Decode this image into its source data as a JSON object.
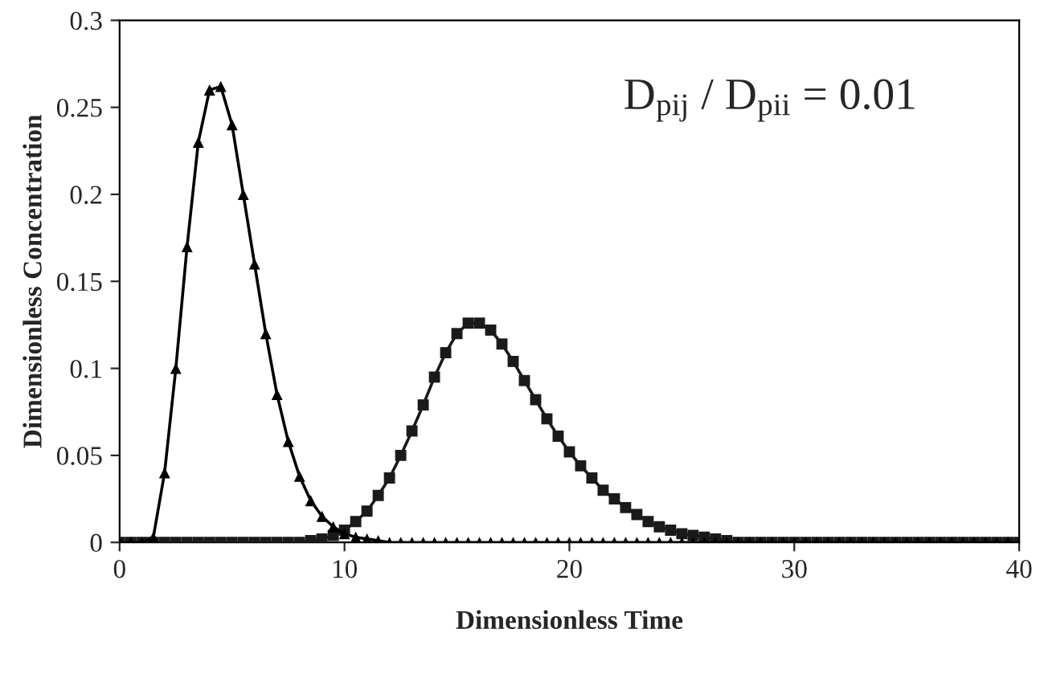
{
  "chart_data": {
    "type": "line",
    "xlabel": "Dimensionless Time",
    "ylabel": "Dimensionless Concentration",
    "annotations": [
      "D$_{pij}$ / D$_{pii}$ = 0.01"
    ],
    "x": [
      0,
      0.5,
      1,
      1.5,
      2,
      2.5,
      3,
      3.5,
      4,
      4.5,
      5,
      5.5,
      6,
      6.5,
      7,
      7.5,
      8,
      8.5,
      9,
      9.5,
      10,
      10.5,
      11,
      11.5,
      12,
      12.5,
      13,
      13.5,
      14,
      14.5,
      15,
      15.5,
      16,
      16.5,
      17,
      17.5,
      18,
      18.5,
      19,
      19.5,
      20,
      20.5,
      21,
      21.5,
      22,
      22.5,
      23,
      23.5,
      24,
      24.5,
      25,
      25.5,
      26,
      26.5,
      27,
      27.5,
      28,
      28.5,
      29,
      29.5,
      30,
      30.5,
      31,
      31.5,
      32,
      32.5,
      33,
      33.5,
      34,
      34.5,
      35,
      35.5,
      36,
      36.5,
      37,
      37.5,
      38,
      38.5,
      39,
      39.5,
      40
    ],
    "series": [
      {
        "color": "#000000",
        "marker": "triangle",
        "values": [
          0,
          0,
          0,
          0.003,
          0.04,
          0.1,
          0.17,
          0.23,
          0.26,
          0.262,
          0.24,
          0.2,
          0.16,
          0.12,
          0.085,
          0.058,
          0.038,
          0.024,
          0.015,
          0.009,
          0.005,
          0.003,
          0.002,
          0.001,
          0,
          0,
          0,
          0,
          0,
          0,
          0,
          0,
          0,
          0,
          0,
          0,
          0,
          0,
          0,
          0,
          0,
          0,
          0,
          0,
          0,
          0,
          0,
          0,
          0,
          0,
          0,
          0,
          0,
          0,
          0,
          0,
          0,
          0,
          0,
          0,
          0,
          0,
          0,
          0,
          0,
          0,
          0,
          0,
          0,
          0,
          0,
          0,
          0,
          0,
          0,
          0,
          0,
          0,
          0,
          0,
          0
        ]
      },
      {
        "color": "#1a1a1a",
        "marker": "square",
        "values": [
          0,
          0,
          0,
          0,
          0,
          0,
          0,
          0,
          0,
          0,
          0,
          0,
          0,
          0,
          0,
          0,
          0,
          0.001,
          0.002,
          0.004,
          0.007,
          0.012,
          0.018,
          0.027,
          0.037,
          0.05,
          0.064,
          0.079,
          0.095,
          0.109,
          0.12,
          0.126,
          0.126,
          0.122,
          0.114,
          0.104,
          0.093,
          0.082,
          0.071,
          0.061,
          0.052,
          0.044,
          0.037,
          0.03,
          0.025,
          0.02,
          0.016,
          0.012,
          0.009,
          0.007,
          0.005,
          0.004,
          0.003,
          0.002,
          0.001,
          0,
          0,
          0,
          0,
          0,
          0,
          0,
          0,
          0,
          0,
          0,
          0,
          0,
          0,
          0,
          0,
          0,
          0,
          0,
          0,
          0,
          0,
          0,
          0,
          0,
          0
        ]
      }
    ],
    "xlim": [
      0,
      40
    ],
    "xticks": [
      0,
      10,
      20,
      30,
      40
    ],
    "ylim": [
      0,
      0.3
    ],
    "yticks": [
      0,
      0.05,
      0.1,
      0.15,
      0.2,
      0.25,
      0.3
    ],
    "grid": false,
    "legend": false,
    "line_style": "solid"
  }
}
